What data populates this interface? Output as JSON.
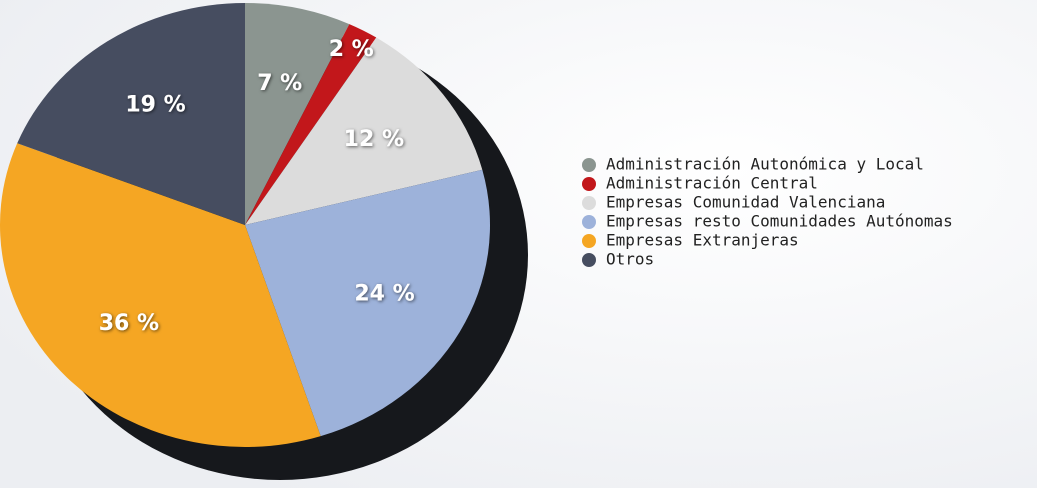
{
  "chart_data": {
    "type": "pie",
    "categories": [
      "Administración Autonómica y Local",
      "Administración Central",
      "Empresas Comunidad Valenciana",
      "Empresas resto Comunidades Autónomas",
      "Empresas Extranjeras",
      "Otros"
    ],
    "values": [
      7,
      2,
      12,
      24,
      36,
      19
    ],
    "value_labels": [
      "7 %",
      "2 %",
      "12 %",
      "24 %",
      "36 %",
      "19 %"
    ],
    "colors": [
      "#8b9590",
      "#c2171b",
      "#dcdcdc",
      "#9db2da",
      "#f5a623",
      "#464d60"
    ]
  }
}
